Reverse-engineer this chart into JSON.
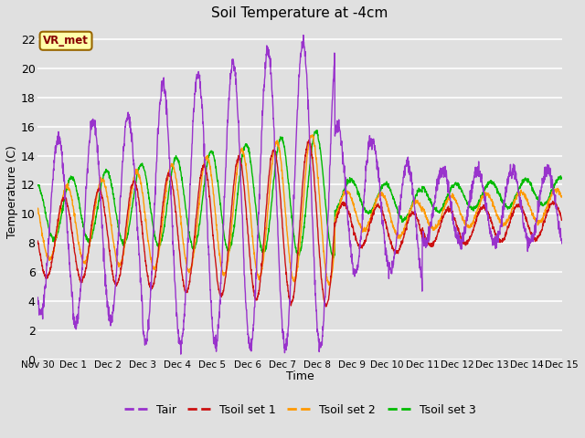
{
  "title": "Soil Temperature at -4cm",
  "xlabel": "Time",
  "ylabel": "Temperature (C)",
  "ylim": [
    0,
    23
  ],
  "yticks": [
    0,
    2,
    4,
    6,
    8,
    10,
    12,
    14,
    16,
    18,
    20,
    22
  ],
  "plot_bg_color": "#e0e0e0",
  "grid_color": "white",
  "annotation_text": "VR_met",
  "annotation_bg": "#ffffaa",
  "annotation_border": "#996600",
  "annotation_text_color": "#880000",
  "line_colors": {
    "Tair": "#9933cc",
    "Tsoil1": "#cc1111",
    "Tsoil2": "#ff9900",
    "Tsoil3": "#00bb00"
  },
  "legend_labels": [
    "Tair",
    "Tsoil set 1",
    "Tsoil set 2",
    "Tsoil set 3"
  ],
  "x_tick_labels": [
    "Nov 30",
    "Dec 1",
    "Dec 2",
    "Dec 3",
    "Dec 4",
    "Dec 5",
    "Dec 6",
    "Dec 7",
    "Dec 8",
    "Dec 9",
    "Dec 10",
    "Dec 11",
    "Dec 12",
    "Dec 13",
    "Dec 14",
    "Dec 15"
  ],
  "num_days": 15,
  "pts_per_day": 144
}
